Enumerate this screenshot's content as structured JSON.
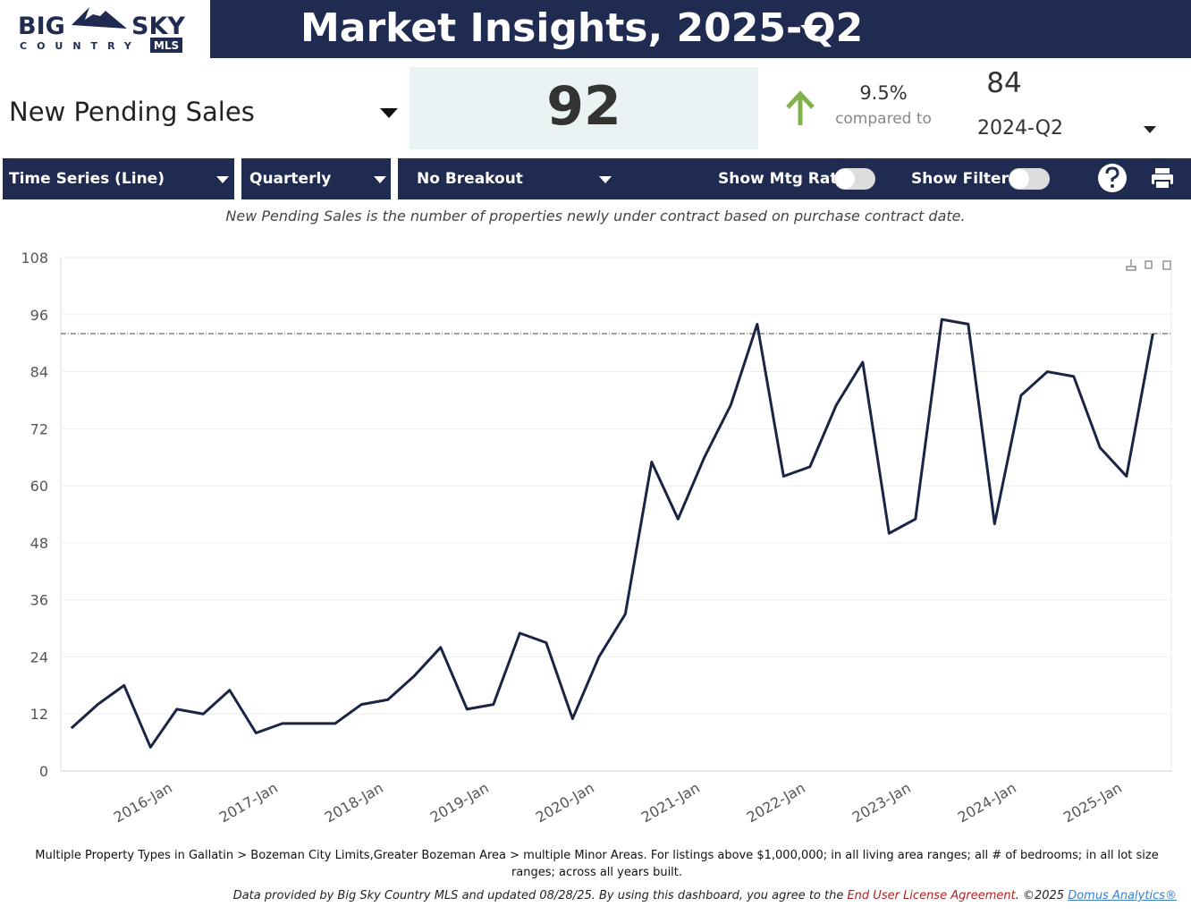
{
  "header": {
    "logo": {
      "big": "BIG",
      "sky": "SKY",
      "country": "COUNTRY",
      "mls": "MLS"
    },
    "title": "Market Insights, 2025-Q2"
  },
  "kpi": {
    "metric": "New Pending Sales",
    "value": 92,
    "change": "9.5%",
    "compared_to": "compared to",
    "comparison_value": 84,
    "comparison_period": "2024-Q2"
  },
  "toolbar": {
    "chart_type": "Time Series (Line)",
    "interval": "Quarterly",
    "breakout": "No Breakout",
    "mtg_rate": "Show Mtg Rate:",
    "filters": "Show Filters:"
  },
  "description": "New Pending Sales is the number of properties newly under contract based on purchase contract date.",
  "chart_data": {
    "type": "line",
    "categories": [
      null,
      null,
      null,
      null,
      "2016-Jan",
      null,
      null,
      null,
      "2017-Jan",
      null,
      null,
      null,
      "2018-Jan",
      null,
      null,
      null,
      "2019-Jan",
      null,
      null,
      null,
      "2020-Jan",
      null,
      null,
      null,
      "2021-Jan",
      null,
      null,
      null,
      "2022-Jan",
      null,
      null,
      null,
      "2023-Jan",
      null,
      null,
      null,
      "2024-Jan",
      null,
      null,
      null,
      "2025-Jan",
      null
    ],
    "values": [
      9,
      14,
      18,
      5,
      13,
      12,
      17,
      8,
      10,
      10,
      10,
      14,
      15,
      20,
      26,
      13,
      14,
      29,
      27,
      11,
      24,
      33,
      65,
      53,
      66,
      77,
      94,
      62,
      64,
      77,
      86,
      50,
      53,
      95,
      94,
      52,
      79,
      84,
      83,
      68,
      62,
      92
    ],
    "color": "#1a2445",
    "ylim": [
      0,
      108
    ],
    "yticks": [
      0,
      12,
      24,
      36,
      48,
      60,
      72,
      84,
      96,
      108
    ],
    "grid": true
  },
  "footer": {
    "filters": "Multiple Property Types in Gallatin > Bozeman City Limits,Greater Bozeman Area > multiple Minor Areas. For listings above $1,000,000; in all living area ranges; all # of bedrooms; in all lot size ranges; across all years built.",
    "disclaimer": "Data provided by Big Sky Country MLS and updated 08/28/25.  By using this dashboard, you agree to the ",
    "eula": "End User License Agreement",
    "copyright": ".  ©2025 ",
    "vendor": "Domus Analytics®"
  }
}
